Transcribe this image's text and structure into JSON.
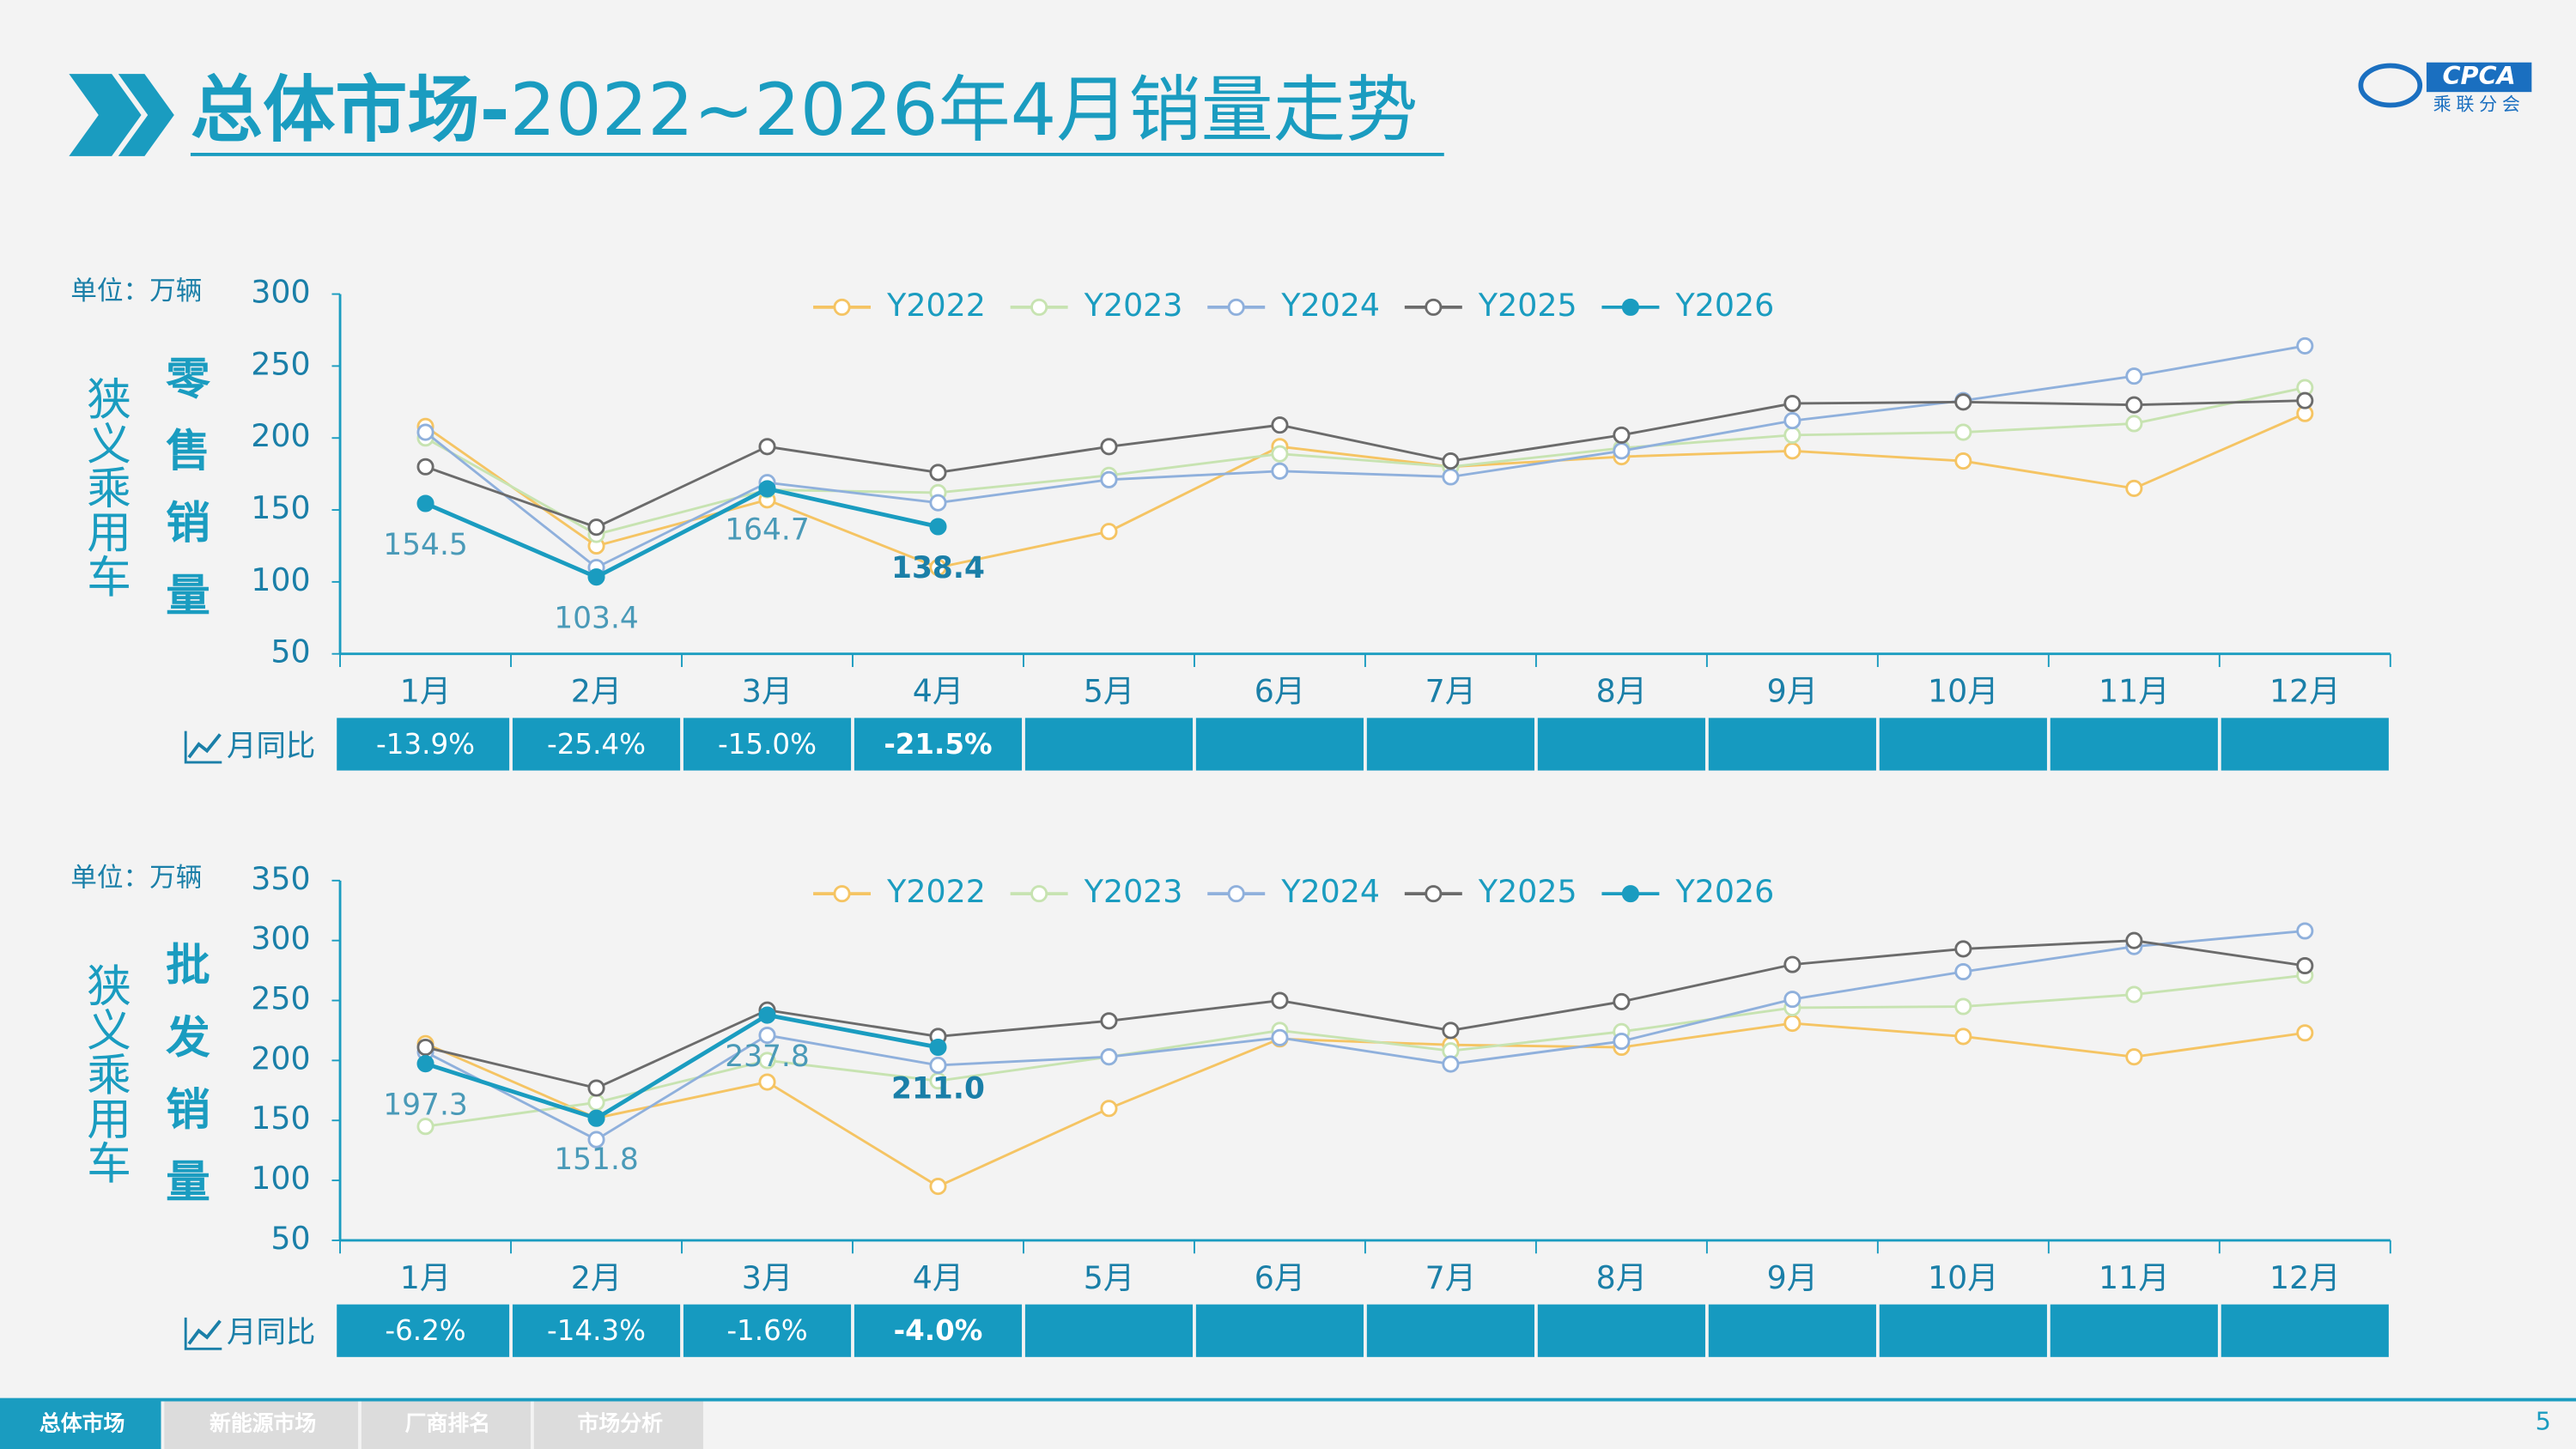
{
  "header": {
    "title_bold": "总体市场-",
    "title_rest": "2022~2026年4月销量走势",
    "logo": "CPCA",
    "logo_sub": "乘联分会"
  },
  "chart_data": [
    {
      "type": "line",
      "unit": "单位：万辆",
      "segment": "狭义乘用车",
      "metric": "零售销量",
      "legend": "top",
      "grid": false,
      "categories": [
        "1月",
        "2月",
        "3月",
        "4月",
        "5月",
        "6月",
        "7月",
        "8月",
        "9月",
        "10月",
        "11月",
        "12月"
      ],
      "ylim": [
        50,
        300
      ],
      "yticks": [
        50,
        100,
        150,
        200,
        250,
        300
      ],
      "series": [
        {
          "name": "Y2022",
          "color": "#f5c463",
          "values": [
            208,
            125,
            157,
            110,
            135,
            194,
            180,
            187,
            191,
            184,
            165,
            217
          ]
        },
        {
          "name": "Y2023",
          "color": "#c7e3b1",
          "values": [
            200,
            133,
            164,
            162,
            174,
            189,
            180,
            193,
            202,
            204,
            210,
            235
          ]
        },
        {
          "name": "Y2024",
          "color": "#8fb0dc",
          "values": [
            204,
            110,
            169,
            155,
            171,
            177,
            173,
            191,
            212,
            226,
            243,
            264
          ]
        },
        {
          "name": "Y2025",
          "color": "#6b6b6b",
          "values": [
            180,
            138,
            194,
            176,
            194,
            209,
            184,
            202,
            224,
            225,
            223,
            226
          ]
        },
        {
          "name": "Y2026",
          "color": "#1a9cc0",
          "values": [
            154.5,
            103.4,
            164.7,
            138.4,
            null,
            null,
            null,
            null,
            null,
            null,
            null,
            null
          ]
        }
      ],
      "yoy": {
        "label": "月同比",
        "values": [
          -13.9,
          -25.4,
          -15.0,
          -21.5
        ],
        "value_labels": [
          "-13.9%",
          "-25.4%",
          "-15.0%",
          "-21.5%"
        ]
      }
    },
    {
      "type": "line",
      "unit": "单位：万辆",
      "segment": "狭义乘用车",
      "metric": "批发销量",
      "legend": "top",
      "grid": false,
      "categories": [
        "1月",
        "2月",
        "3月",
        "4月",
        "5月",
        "6月",
        "7月",
        "8月",
        "9月",
        "10月",
        "11月",
        "12月"
      ],
      "ylim": [
        50,
        350
      ],
      "yticks": [
        50,
        100,
        150,
        200,
        250,
        300,
        350
      ],
      "series": [
        {
          "name": "Y2022",
          "color": "#f5c463",
          "values": [
            214,
            152,
            182,
            95,
            160,
            218,
            213,
            211,
            231,
            220,
            203,
            223
          ]
        },
        {
          "name": "Y2023",
          "color": "#c7e3b1",
          "values": [
            145,
            165,
            200,
            183,
            203,
            225,
            208,
            224,
            244,
            245,
            255,
            271
          ]
        },
        {
          "name": "Y2024",
          "color": "#8fb0dc",
          "values": [
            207,
            134,
            221,
            196,
            203,
            219,
            197,
            216,
            251,
            274,
            295,
            308
          ]
        },
        {
          "name": "Y2025",
          "color": "#6b6b6b",
          "values": [
            211,
            177,
            242,
            220,
            233,
            250,
            225,
            249,
            280,
            293,
            300,
            279
          ]
        },
        {
          "name": "Y2026",
          "color": "#1a9cc0",
          "values": [
            197.3,
            151.8,
            237.8,
            211,
            null,
            null,
            null,
            null,
            null,
            null,
            null,
            null
          ],
          "value_labels": [
            "197.3",
            "151.8",
            "237.8",
            "211.0"
          ]
        }
      ],
      "yoy": {
        "label": "月同比",
        "values": [
          -6.2,
          -14.3,
          -1.6,
          -4.0
        ],
        "value_labels": [
          "-6.2%",
          "-14.3%",
          "-1.6%",
          "-4.0%"
        ]
      }
    }
  ],
  "footer": {
    "tabs": [
      "总体市场",
      "新能源市场",
      "厂商排名",
      "市场分析"
    ],
    "page": 5
  }
}
